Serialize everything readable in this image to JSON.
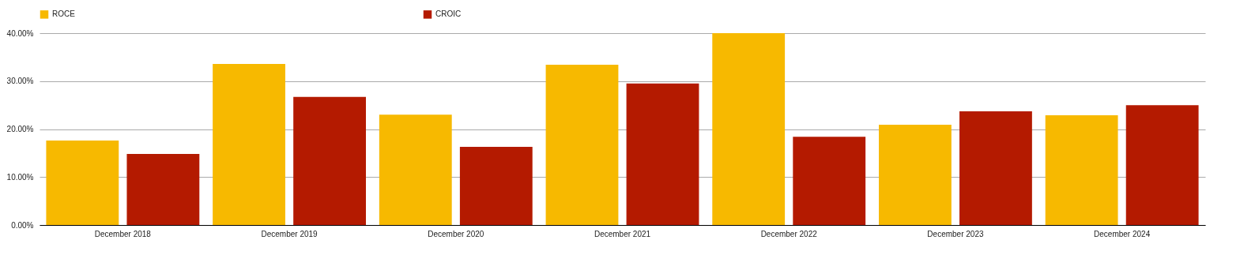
{
  "chart_data": {
    "type": "bar",
    "categories": [
      "December 2018",
      "December 2019",
      "December 2020",
      "December 2021",
      "December 2022",
      "December 2023",
      "December 2024"
    ],
    "series": [
      {
        "name": "ROCE",
        "color": "#f7b900",
        "values": [
          17.6,
          33.6,
          23.0,
          33.4,
          40.0,
          20.9,
          22.9
        ]
      },
      {
        "name": "CROIC",
        "color": "#b41a00",
        "values": [
          14.8,
          26.7,
          16.3,
          29.5,
          18.4,
          23.7,
          25.0
        ]
      }
    ],
    "ylim": [
      0,
      40
    ],
    "yticks": [
      {
        "value": 0,
        "label": "0.00%"
      },
      {
        "value": 10,
        "label": "10.00%"
      },
      {
        "value": 20,
        "label": "20.00%"
      },
      {
        "value": 30,
        "label": "30.00%"
      },
      {
        "value": 40,
        "label": "40.00%"
      }
    ],
    "grid": "y",
    "legend": "top"
  }
}
